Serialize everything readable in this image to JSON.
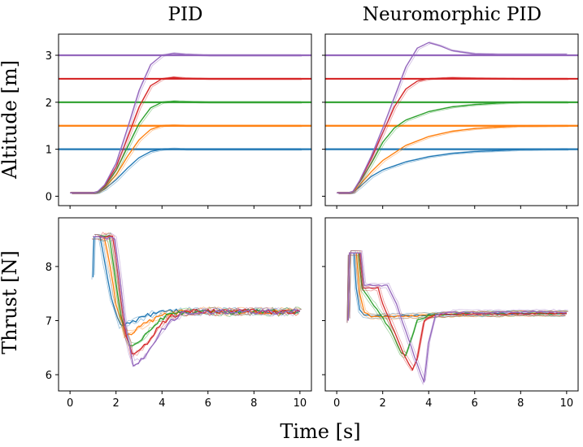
{
  "figure": {
    "xlabel": "Time [s]",
    "ylabel_top": "Altitude [m]",
    "ylabel_bottom": "Thrust [N]",
    "col_titles": [
      "PID",
      "Neuromorphic PID"
    ]
  },
  "colors": {
    "blue": "#1f77b4",
    "orange": "#ff7f0e",
    "green": "#2ca02c",
    "red": "#d62728",
    "purple": "#9467bd"
  },
  "chart_data": [
    {
      "type": "line",
      "title": "PID",
      "ylabel": "Altitude [m]",
      "xlabel": "",
      "xlim": [
        -0.5,
        10.5
      ],
      "ylim": [
        -0.2,
        3.45
      ],
      "xticks": [
        0,
        2,
        4,
        6,
        8,
        10
      ],
      "yticks": [
        0,
        1,
        2,
        3
      ],
      "setpoints": [
        1.0,
        1.5,
        2.0,
        2.5,
        3.0
      ],
      "series": [
        {
          "name": "setpoint 1.0 m",
          "color": "blue",
          "x": [
            0,
            1.0,
            1.2,
            1.5,
            2.0,
            2.5,
            3.0,
            3.5,
            4.0,
            4.5,
            5.0,
            6.0,
            7.0,
            8.0,
            10.0
          ],
          "y": [
            0.07,
            0.07,
            0.08,
            0.15,
            0.35,
            0.6,
            0.82,
            0.95,
            1.0,
            1.01,
            1.0,
            1.0,
            1.0,
            1.0,
            1.0
          ]
        },
        {
          "name": "setpoint 1.5 m",
          "color": "orange",
          "x": [
            0,
            1.0,
            1.2,
            1.5,
            2.0,
            2.5,
            3.0,
            3.5,
            4.0,
            4.5,
            5.0,
            6.0,
            7.0,
            8.0,
            10.0
          ],
          "y": [
            0.07,
            0.07,
            0.09,
            0.18,
            0.45,
            0.85,
            1.2,
            1.42,
            1.5,
            1.51,
            1.5,
            1.5,
            1.5,
            1.5,
            1.5
          ]
        },
        {
          "name": "setpoint 2.0 m",
          "color": "green",
          "x": [
            0,
            1.0,
            1.2,
            1.5,
            2.0,
            2.5,
            3.0,
            3.5,
            4.0,
            4.5,
            5.0,
            6.0,
            7.0,
            8.0,
            10.0
          ],
          "y": [
            0.07,
            0.07,
            0.09,
            0.2,
            0.55,
            1.05,
            1.55,
            1.88,
            2.0,
            2.02,
            2.01,
            2.0,
            2.0,
            2.0,
            2.0
          ]
        },
        {
          "name": "setpoint 2.5 m",
          "color": "red",
          "x": [
            0,
            1.0,
            1.2,
            1.5,
            2.0,
            2.5,
            3.0,
            3.5,
            4.0,
            4.5,
            5.0,
            6.0,
            7.0,
            8.0,
            10.0
          ],
          "y": [
            0.07,
            0.07,
            0.1,
            0.22,
            0.62,
            1.25,
            1.9,
            2.35,
            2.5,
            2.53,
            2.51,
            2.5,
            2.5,
            2.5,
            2.5
          ]
        },
        {
          "name": "setpoint 3.0 m",
          "color": "purple",
          "x": [
            0,
            1.0,
            1.2,
            1.5,
            2.0,
            2.5,
            3.0,
            3.5,
            4.0,
            4.5,
            5.0,
            6.0,
            7.0,
            8.0,
            10.0
          ],
          "y": [
            0.07,
            0.07,
            0.1,
            0.24,
            0.7,
            1.45,
            2.25,
            2.8,
            3.0,
            3.04,
            3.02,
            3.0,
            3.0,
            3.0,
            3.0
          ]
        }
      ]
    },
    {
      "type": "line",
      "title": "Neuromorphic PID",
      "ylabel": "",
      "xlabel": "",
      "xlim": [
        -0.5,
        10.5
      ],
      "ylim": [
        -0.2,
        3.45
      ],
      "xticks": [
        0,
        2,
        4,
        6,
        8,
        10
      ],
      "yticks": [
        0,
        1,
        2,
        3
      ],
      "setpoints": [
        1.0,
        1.5,
        2.0,
        2.5,
        3.0
      ],
      "series": [
        {
          "name": "setpoint 1.0 m",
          "color": "blue",
          "x": [
            0,
            0.5,
            0.7,
            1.0,
            1.5,
            2.0,
            3.0,
            4.0,
            5.0,
            6.0,
            7.0,
            8.0,
            10.0
          ],
          "y": [
            0.07,
            0.07,
            0.08,
            0.2,
            0.42,
            0.56,
            0.73,
            0.84,
            0.91,
            0.95,
            0.97,
            0.99,
            1.0
          ]
        },
        {
          "name": "setpoint 1.5 m",
          "color": "orange",
          "x": [
            0,
            0.5,
            0.7,
            1.0,
            1.5,
            2.0,
            3.0,
            4.0,
            5.0,
            6.0,
            7.0,
            8.0,
            10.0
          ],
          "y": [
            0.07,
            0.07,
            0.09,
            0.24,
            0.52,
            0.76,
            1.08,
            1.27,
            1.38,
            1.44,
            1.47,
            1.49,
            1.5
          ]
        },
        {
          "name": "setpoint 2.0 m",
          "color": "green",
          "x": [
            0,
            0.5,
            0.7,
            1.0,
            1.5,
            2.0,
            2.5,
            3.0,
            4.0,
            5.0,
            6.0,
            7.0,
            8.0,
            10.0
          ],
          "y": [
            0.07,
            0.07,
            0.1,
            0.3,
            0.7,
            1.15,
            1.45,
            1.62,
            1.8,
            1.9,
            1.95,
            1.98,
            2.0,
            2.0
          ]
        },
        {
          "name": "setpoint 2.5 m",
          "color": "red",
          "x": [
            0,
            0.5,
            0.7,
            1.0,
            1.5,
            2.0,
            2.5,
            3.0,
            3.5,
            4.0,
            5.0,
            6.0,
            8.0,
            10.0
          ],
          "y": [
            0.07,
            0.07,
            0.1,
            0.32,
            0.8,
            1.35,
            1.9,
            2.28,
            2.45,
            2.5,
            2.52,
            2.51,
            2.5,
            2.5
          ]
        },
        {
          "name": "setpoint 3.0 m",
          "color": "purple",
          "x": [
            0,
            0.5,
            0.7,
            1.0,
            1.5,
            2.0,
            2.5,
            3.0,
            3.5,
            4.0,
            4.5,
            5.0,
            6.0,
            7.0,
            8.0,
            10.0
          ],
          "y": [
            0.07,
            0.07,
            0.1,
            0.34,
            0.85,
            1.45,
            2.1,
            2.75,
            3.15,
            3.27,
            3.2,
            3.1,
            3.03,
            3.02,
            3.02,
            3.02
          ]
        }
      ]
    },
    {
      "type": "line",
      "title": "",
      "ylabel": "Thrust [N]",
      "xlabel": "Time [s]",
      "xlim": [
        -0.5,
        10.5
      ],
      "ylim": [
        5.7,
        8.9
      ],
      "xticks": [
        0,
        2,
        4,
        6,
        8,
        10
      ],
      "yticks": [
        6,
        7,
        8
      ],
      "series": [
        {
          "name": "setpoint 1.0 m",
          "color": "blue",
          "x": [
            1.0,
            1.05,
            1.3,
            1.5,
            1.8,
            2.2,
            2.6,
            3.0,
            3.5,
            4.0,
            4.5,
            5.0,
            6.0,
            7.0,
            8.0,
            9.0,
            10.0
          ],
          "y": [
            7.8,
            8.55,
            8.55,
            8.1,
            7.4,
            6.92,
            6.95,
            7.05,
            7.1,
            7.14,
            7.17,
            7.17,
            7.17,
            7.16,
            7.17,
            7.16,
            7.17
          ]
        },
        {
          "name": "setpoint 1.5 m",
          "color": "orange",
          "x": [
            1.0,
            1.05,
            1.5,
            1.75,
            2.0,
            2.4,
            2.8,
            3.2,
            3.6,
            4.0,
            4.5,
            5.0,
            6.0,
            7.0,
            8.0,
            9.0,
            10.0
          ],
          "y": [
            8.55,
            8.55,
            8.55,
            8.0,
            7.3,
            6.75,
            6.8,
            6.92,
            7.02,
            7.1,
            7.15,
            7.16,
            7.17,
            7.16,
            7.17,
            7.16,
            7.17
          ]
        },
        {
          "name": "setpoint 2.0 m",
          "color": "green",
          "x": [
            1.0,
            1.7,
            1.95,
            2.2,
            2.6,
            3.0,
            3.4,
            3.8,
            4.2,
            4.6,
            5.0,
            6.0,
            7.0,
            8.0,
            9.0,
            10.0
          ],
          "y": [
            8.55,
            8.55,
            7.9,
            7.1,
            6.55,
            6.6,
            6.8,
            6.97,
            7.08,
            7.14,
            7.16,
            7.17,
            7.16,
            7.17,
            7.16,
            7.17
          ]
        },
        {
          "name": "setpoint 2.5 m",
          "color": "red",
          "x": [
            1.0,
            1.85,
            2.1,
            2.35,
            2.7,
            3.1,
            3.5,
            3.9,
            4.3,
            4.7,
            5.1,
            6.0,
            7.0,
            8.0,
            9.0,
            10.0
          ],
          "y": [
            8.55,
            8.55,
            7.8,
            6.9,
            6.35,
            6.45,
            6.68,
            6.9,
            7.05,
            7.12,
            7.16,
            7.17,
            7.16,
            7.17,
            7.16,
            7.17
          ]
        },
        {
          "name": "setpoint 3.0 m",
          "color": "purple",
          "x": [
            1.0,
            1.95,
            2.2,
            2.45,
            2.75,
            3.2,
            3.6,
            4.0,
            4.4,
            4.8,
            5.2,
            6.0,
            7.0,
            8.0,
            9.0,
            10.0
          ],
          "y": [
            8.55,
            8.55,
            7.7,
            6.75,
            6.2,
            6.3,
            6.55,
            6.82,
            7.0,
            7.1,
            7.15,
            7.17,
            7.16,
            7.17,
            7.16,
            7.17
          ]
        }
      ]
    },
    {
      "type": "line",
      "title": "",
      "ylabel": "",
      "xlabel": "Time [s]",
      "xlim": [
        -0.5,
        10.5
      ],
      "ylim": [
        5.7,
        8.9
      ],
      "xticks": [
        0,
        2,
        4,
        6,
        8,
        10
      ],
      "yticks": [
        6,
        7,
        8
      ],
      "series": [
        {
          "name": "setpoint 1.0 m",
          "color": "blue",
          "x": [
            0.5,
            0.55,
            0.75,
            0.85,
            1.0,
            1.2,
            1.5,
            2.0,
            3.0,
            4.0,
            5.0,
            6.0,
            7.0,
            8.0,
            9.0,
            10.0
          ],
          "y": [
            7.0,
            8.25,
            8.25,
            7.6,
            7.2,
            7.1,
            7.08,
            7.08,
            7.09,
            7.1,
            7.12,
            7.12,
            7.13,
            7.13,
            7.13,
            7.13
          ]
        },
        {
          "name": "setpoint 1.5 m",
          "color": "orange",
          "x": [
            0.5,
            0.55,
            0.85,
            1.0,
            1.2,
            1.5,
            2.0,
            3.0,
            4.0,
            5.0,
            6.0,
            7.0,
            8.0,
            9.0,
            10.0
          ],
          "y": [
            7.0,
            8.25,
            8.25,
            7.5,
            7.15,
            7.08,
            7.07,
            7.08,
            7.1,
            7.11,
            7.12,
            7.12,
            7.13,
            7.13,
            7.13
          ]
        },
        {
          "name": "setpoint 2.0 m",
          "color": "green",
          "x": [
            0.5,
            0.55,
            0.95,
            1.1,
            1.5,
            2.0,
            2.5,
            2.8,
            3.0,
            3.2,
            3.5,
            4.0,
            5.0,
            6.0,
            7.0,
            8.0,
            9.0,
            10.0
          ],
          "y": [
            7.0,
            8.25,
            8.25,
            7.6,
            7.35,
            7.05,
            6.7,
            6.4,
            6.35,
            6.6,
            7.0,
            7.1,
            7.12,
            7.13,
            7.12,
            7.13,
            7.13,
            7.13
          ]
        },
        {
          "name": "setpoint 2.5 m",
          "color": "red",
          "x": [
            0.5,
            0.55,
            1.0,
            1.15,
            1.8,
            2.0,
            2.5,
            3.0,
            3.3,
            3.5,
            3.8,
            4.2,
            5.0,
            6.0,
            7.0,
            8.0,
            9.0,
            10.0
          ],
          "y": [
            7.0,
            8.25,
            8.25,
            7.6,
            7.6,
            7.3,
            6.8,
            6.3,
            6.1,
            6.3,
            7.0,
            7.1,
            7.12,
            7.13,
            7.12,
            7.13,
            7.13,
            7.13
          ]
        },
        {
          "name": "setpoint 3.0 m",
          "color": "purple",
          "x": [
            0.5,
            0.55,
            1.05,
            1.2,
            2.2,
            2.6,
            3.0,
            3.5,
            3.8,
            4.0,
            4.3,
            5.0,
            6.0,
            7.0,
            8.0,
            9.0,
            10.0
          ],
          "y": [
            7.0,
            8.25,
            8.25,
            7.65,
            7.65,
            7.3,
            6.8,
            6.2,
            5.85,
            6.6,
            7.1,
            7.15,
            7.15,
            7.16,
            7.15,
            7.16,
            7.15
          ]
        }
      ]
    }
  ]
}
